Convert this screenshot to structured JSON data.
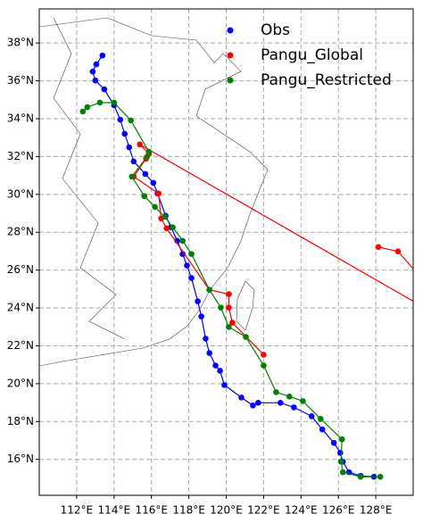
{
  "chart_data": {
    "type": "line",
    "xlim": [
      110,
      130
    ],
    "ylim": [
      14.1,
      39.8
    ],
    "grid": true,
    "legend": "upper right",
    "xticks": [
      {
        "value": 112,
        "label": "112°E"
      },
      {
        "value": 114,
        "label": "114°E"
      },
      {
        "value": 116,
        "label": "116°E"
      },
      {
        "value": 118,
        "label": "118°E"
      },
      {
        "value": 120,
        "label": "120°E"
      },
      {
        "value": 122,
        "label": "122°E"
      },
      {
        "value": 124,
        "label": "124°E"
      },
      {
        "value": 126,
        "label": "126°E"
      },
      {
        "value": 128,
        "label": "128°E"
      }
    ],
    "yticks": [
      {
        "value": 16,
        "label": "16°N"
      },
      {
        "value": 18,
        "label": "18°N"
      },
      {
        "value": 20,
        "label": "20°N"
      },
      {
        "value": 22,
        "label": "22°N"
      },
      {
        "value": 24,
        "label": "24°N"
      },
      {
        "value": 26,
        "label": "26°N"
      },
      {
        "value": 28,
        "label": "28°N"
      },
      {
        "value": 30,
        "label": "30°N"
      },
      {
        "value": 32,
        "label": "32°N"
      },
      {
        "value": 34,
        "label": "34°N"
      },
      {
        "value": 36,
        "label": "36°N"
      },
      {
        "value": 38,
        "label": "38°N"
      }
    ],
    "series": [
      {
        "name": "Obs",
        "color": "#0000ff",
        "x": [
          127.9,
          127.19,
          126.57,
          126.24,
          126.1,
          125.76,
          125.14,
          124.57,
          123.62,
          122.9,
          121.71,
          121.43,
          120.81,
          119.9,
          119.67,
          119.43,
          119.1,
          118.9,
          118.67,
          118.48,
          118.14,
          117.9,
          117.67,
          117.38,
          117.05,
          116.76,
          116.33,
          116.1,
          115.67,
          115.05,
          114.81,
          114.57,
          114.33,
          114.0,
          113.48,
          113.0,
          112.86,
          113.05,
          113.38
        ],
        "values": [
          15.08,
          15.13,
          15.32,
          15.88,
          16.35,
          16.87,
          17.58,
          18.28,
          18.75,
          18.99,
          18.99,
          18.85,
          19.27,
          19.93,
          20.68,
          20.96,
          21.62,
          22.38,
          23.55,
          24.35,
          25.58,
          26.24,
          26.85,
          27.55,
          28.26,
          28.87,
          30.05,
          30.61,
          31.08,
          31.74,
          32.49,
          33.2,
          33.95,
          34.71,
          35.55,
          36.02,
          36.49,
          36.87,
          37.34
        ]
      },
      {
        "name": "Pangu_Global",
        "color": "#ff0000",
        "x": [
          122.0,
          120.33,
          120.14,
          120.14,
          119.1,
          116.81,
          116.52,
          116.38,
          115.05,
          115.71,
          115.86,
          115.38,
          133.0,
          129.19,
          128.14
        ],
        "values": [
          21.53,
          23.22,
          24.02,
          24.73,
          24.96,
          28.21,
          28.73,
          30.05,
          30.94,
          31.88,
          32.16,
          32.64,
          22.66,
          26.99,
          27.22
        ]
      },
      {
        "name": "Pangu_Restricted",
        "color": "#008000",
        "x": [
          128.24,
          127.19,
          126.24,
          126.14,
          126.19,
          125.05,
          124.1,
          123.38,
          122.67,
          122.0,
          121.05,
          120.14,
          119.71,
          119.1,
          118.14,
          117.67,
          117.14,
          116.71,
          116.19,
          115.62,
          114.95,
          115.76,
          115.86,
          114.9,
          114.0,
          113.24,
          112.57,
          112.33
        ],
        "values": [
          15.08,
          15.08,
          15.32,
          15.88,
          17.06,
          18.14,
          19.08,
          19.32,
          19.55,
          20.96,
          22.47,
          22.99,
          24.02,
          24.96,
          26.85,
          27.55,
          28.26,
          28.82,
          29.34,
          29.91,
          30.94,
          31.98,
          32.26,
          33.91,
          34.85,
          34.85,
          34.61,
          34.38
        ]
      }
    ]
  }
}
